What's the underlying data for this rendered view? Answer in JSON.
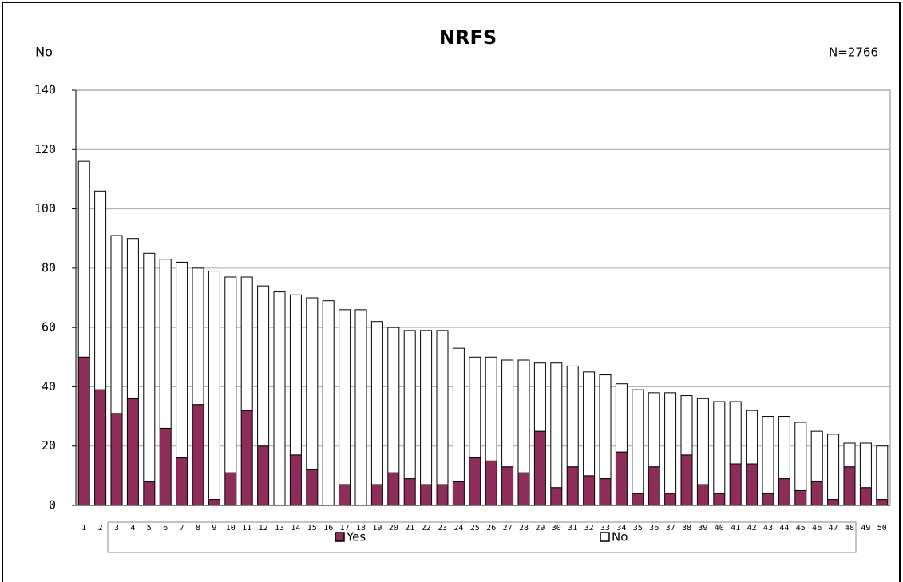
{
  "chart_data": {
    "type": "stacked_bar",
    "title": "NRFS",
    "y_label": "No",
    "annotation": "N=2766",
    "categories": [
      "1",
      "2",
      "3",
      "4",
      "5",
      "6",
      "7",
      "8",
      "9",
      "10",
      "11",
      "12",
      "13",
      "14",
      "15",
      "16",
      "17",
      "18",
      "19",
      "20",
      "21",
      "22",
      "23",
      "24",
      "25",
      "26",
      "27",
      "28",
      "29",
      "30",
      "31",
      "32",
      "33",
      "34",
      "35",
      "36",
      "37",
      "38",
      "39",
      "40",
      "41",
      "42",
      "43",
      "44",
      "45",
      "46",
      "47",
      "48",
      "49",
      "50"
    ],
    "series": [
      {
        "name": "Yes",
        "color": "#8e2c5a",
        "values": [
          50,
          39,
          31,
          36,
          8,
          26,
          16,
          34,
          2,
          11,
          32,
          20,
          0,
          17,
          12,
          0,
          7,
          0,
          7,
          11,
          9,
          7,
          7,
          8,
          16,
          15,
          13,
          11,
          25,
          6,
          13,
          10,
          9,
          18,
          4,
          13,
          4,
          17,
          7,
          4,
          14,
          14,
          4,
          9,
          5,
          8,
          2,
          13,
          6,
          2
        ]
      },
      {
        "name": "No",
        "color": "#ffffff",
        "values": [
          66,
          67,
          60,
          54,
          77,
          57,
          66,
          46,
          77,
          66,
          45,
          54,
          72,
          54,
          58,
          69,
          59,
          66,
          55,
          49,
          50,
          52,
          52,
          45,
          34,
          35,
          36,
          38,
          23,
          42,
          34,
          35,
          35,
          23,
          35,
          25,
          34,
          20,
          29,
          31,
          21,
          18,
          26,
          21,
          23,
          17,
          22,
          8,
          15,
          18
        ]
      }
    ],
    "ylim": [
      0,
      140
    ],
    "yticks": [
      0,
      20,
      40,
      60,
      80,
      100,
      120,
      140
    ],
    "grid": true,
    "legend": "bottom"
  }
}
